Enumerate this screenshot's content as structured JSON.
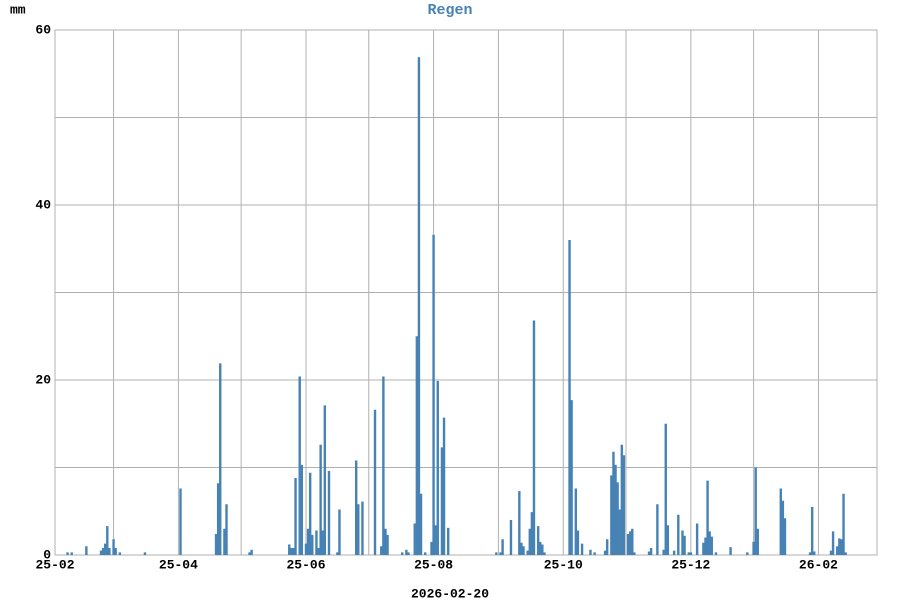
{
  "chart_data": {
    "type": "bar",
    "title": "Regen",
    "y_label": "mm",
    "x_label": "2026-02-20",
    "color": "#4682b4",
    "grid": true,
    "xlim": [
      0,
      393
    ],
    "ylim": [
      0,
      60
    ],
    "xticks": [
      {
        "value": 0,
        "label": "25-02"
      },
      {
        "value": 28
      },
      {
        "value": 59,
        "label": "25-04"
      },
      {
        "value": 89
      },
      {
        "value": 120,
        "label": "25-06"
      },
      {
        "value": 150
      },
      {
        "value": 181,
        "label": "25-08"
      },
      {
        "value": 212
      },
      {
        "value": 243,
        "label": "25-10"
      },
      {
        "value": 273
      },
      {
        "value": 304,
        "label": "25-12"
      },
      {
        "value": 334
      },
      {
        "value": 365,
        "label": "26-02"
      }
    ],
    "yticks": [
      0,
      {
        "value": 10
      },
      20,
      {
        "value": 30
      },
      40,
      {
        "value": 50
      },
      60
    ],
    "x": [
      6,
      8,
      15,
      22,
      23,
      24,
      25,
      26,
      28,
      29,
      31,
      43,
      60,
      77,
      78,
      79,
      81,
      82,
      93,
      94,
      112,
      113,
      114,
      115,
      117,
      118,
      120,
      121,
      122,
      123,
      125,
      126,
      127,
      128,
      129,
      131,
      135,
      136,
      144,
      145,
      147,
      153,
      156,
      157,
      158,
      159,
      166,
      168,
      169,
      172,
      173,
      174,
      175,
      177,
      180,
      181,
      182,
      183,
      185,
      186,
      188,
      211,
      213,
      214,
      218,
      222,
      223,
      224,
      226,
      227,
      228,
      229,
      231,
      232,
      233,
      234,
      246,
      247,
      249,
      250,
      252,
      256,
      258,
      263,
      264,
      266,
      267,
      268,
      269,
      270,
      271,
      272,
      274,
      275,
      276,
      277,
      284,
      285,
      288,
      291,
      292,
      293,
      296,
      298,
      300,
      301,
      303,
      304,
      307,
      310,
      311,
      312,
      313,
      314,
      316,
      323,
      331,
      334,
      335,
      336,
      347,
      348,
      349,
      361,
      362,
      363,
      371,
      372,
      374,
      375,
      376,
      377,
      378
    ],
    "values": [
      0.3,
      0.3,
      1.0,
      0.5,
      0.8,
      1.3,
      3.3,
      0.8,
      1.8,
      0.8,
      0.3,
      0.3,
      7.6,
      2.4,
      8.2,
      21.9,
      3.0,
      5.8,
      0.3,
      0.6,
      1.2,
      0.8,
      0.8,
      8.8,
      20.4,
      10.3,
      1.3,
      3.0,
      9.4,
      2.3,
      2.8,
      0.8,
      12.6,
      2.8,
      17.1,
      9.6,
      0.3,
      5.2,
      10.8,
      5.8,
      6.1,
      16.6,
      1.0,
      20.4,
      3.0,
      2.3,
      0.3,
      0.6,
      0.3,
      3.6,
      25.0,
      56.9,
      7.0,
      0.3,
      1.5,
      36.6,
      3.4,
      19.9,
      12.3,
      15.7,
      3.1,
      0.3,
      0.3,
      1.8,
      4.0,
      7.3,
      1.4,
      1.0,
      0.5,
      3.0,
      4.9,
      26.8,
      3.3,
      1.5,
      1.2,
      0.3,
      36.0,
      17.7,
      7.6,
      2.8,
      1.3,
      0.6,
      0.3,
      0.5,
      1.8,
      9.1,
      11.8,
      10.3,
      8.3,
      5.2,
      12.6,
      11.4,
      2.4,
      2.7,
      3.0,
      0.3,
      0.4,
      0.8,
      5.8,
      0.6,
      15.0,
      3.4,
      0.5,
      4.6,
      2.8,
      2.2,
      0.3,
      0.3,
      3.6,
      1.4,
      2.0,
      8.5,
      2.7,
      2.1,
      0.3,
      0.9,
      0.3,
      1.5,
      10.0,
      3.0,
      7.6,
      6.2,
      4.2,
      0.3,
      5.5,
      0.4,
      0.5,
      2.7,
      1.0,
      1.9,
      1.8,
      7.0,
      0.3
    ]
  }
}
